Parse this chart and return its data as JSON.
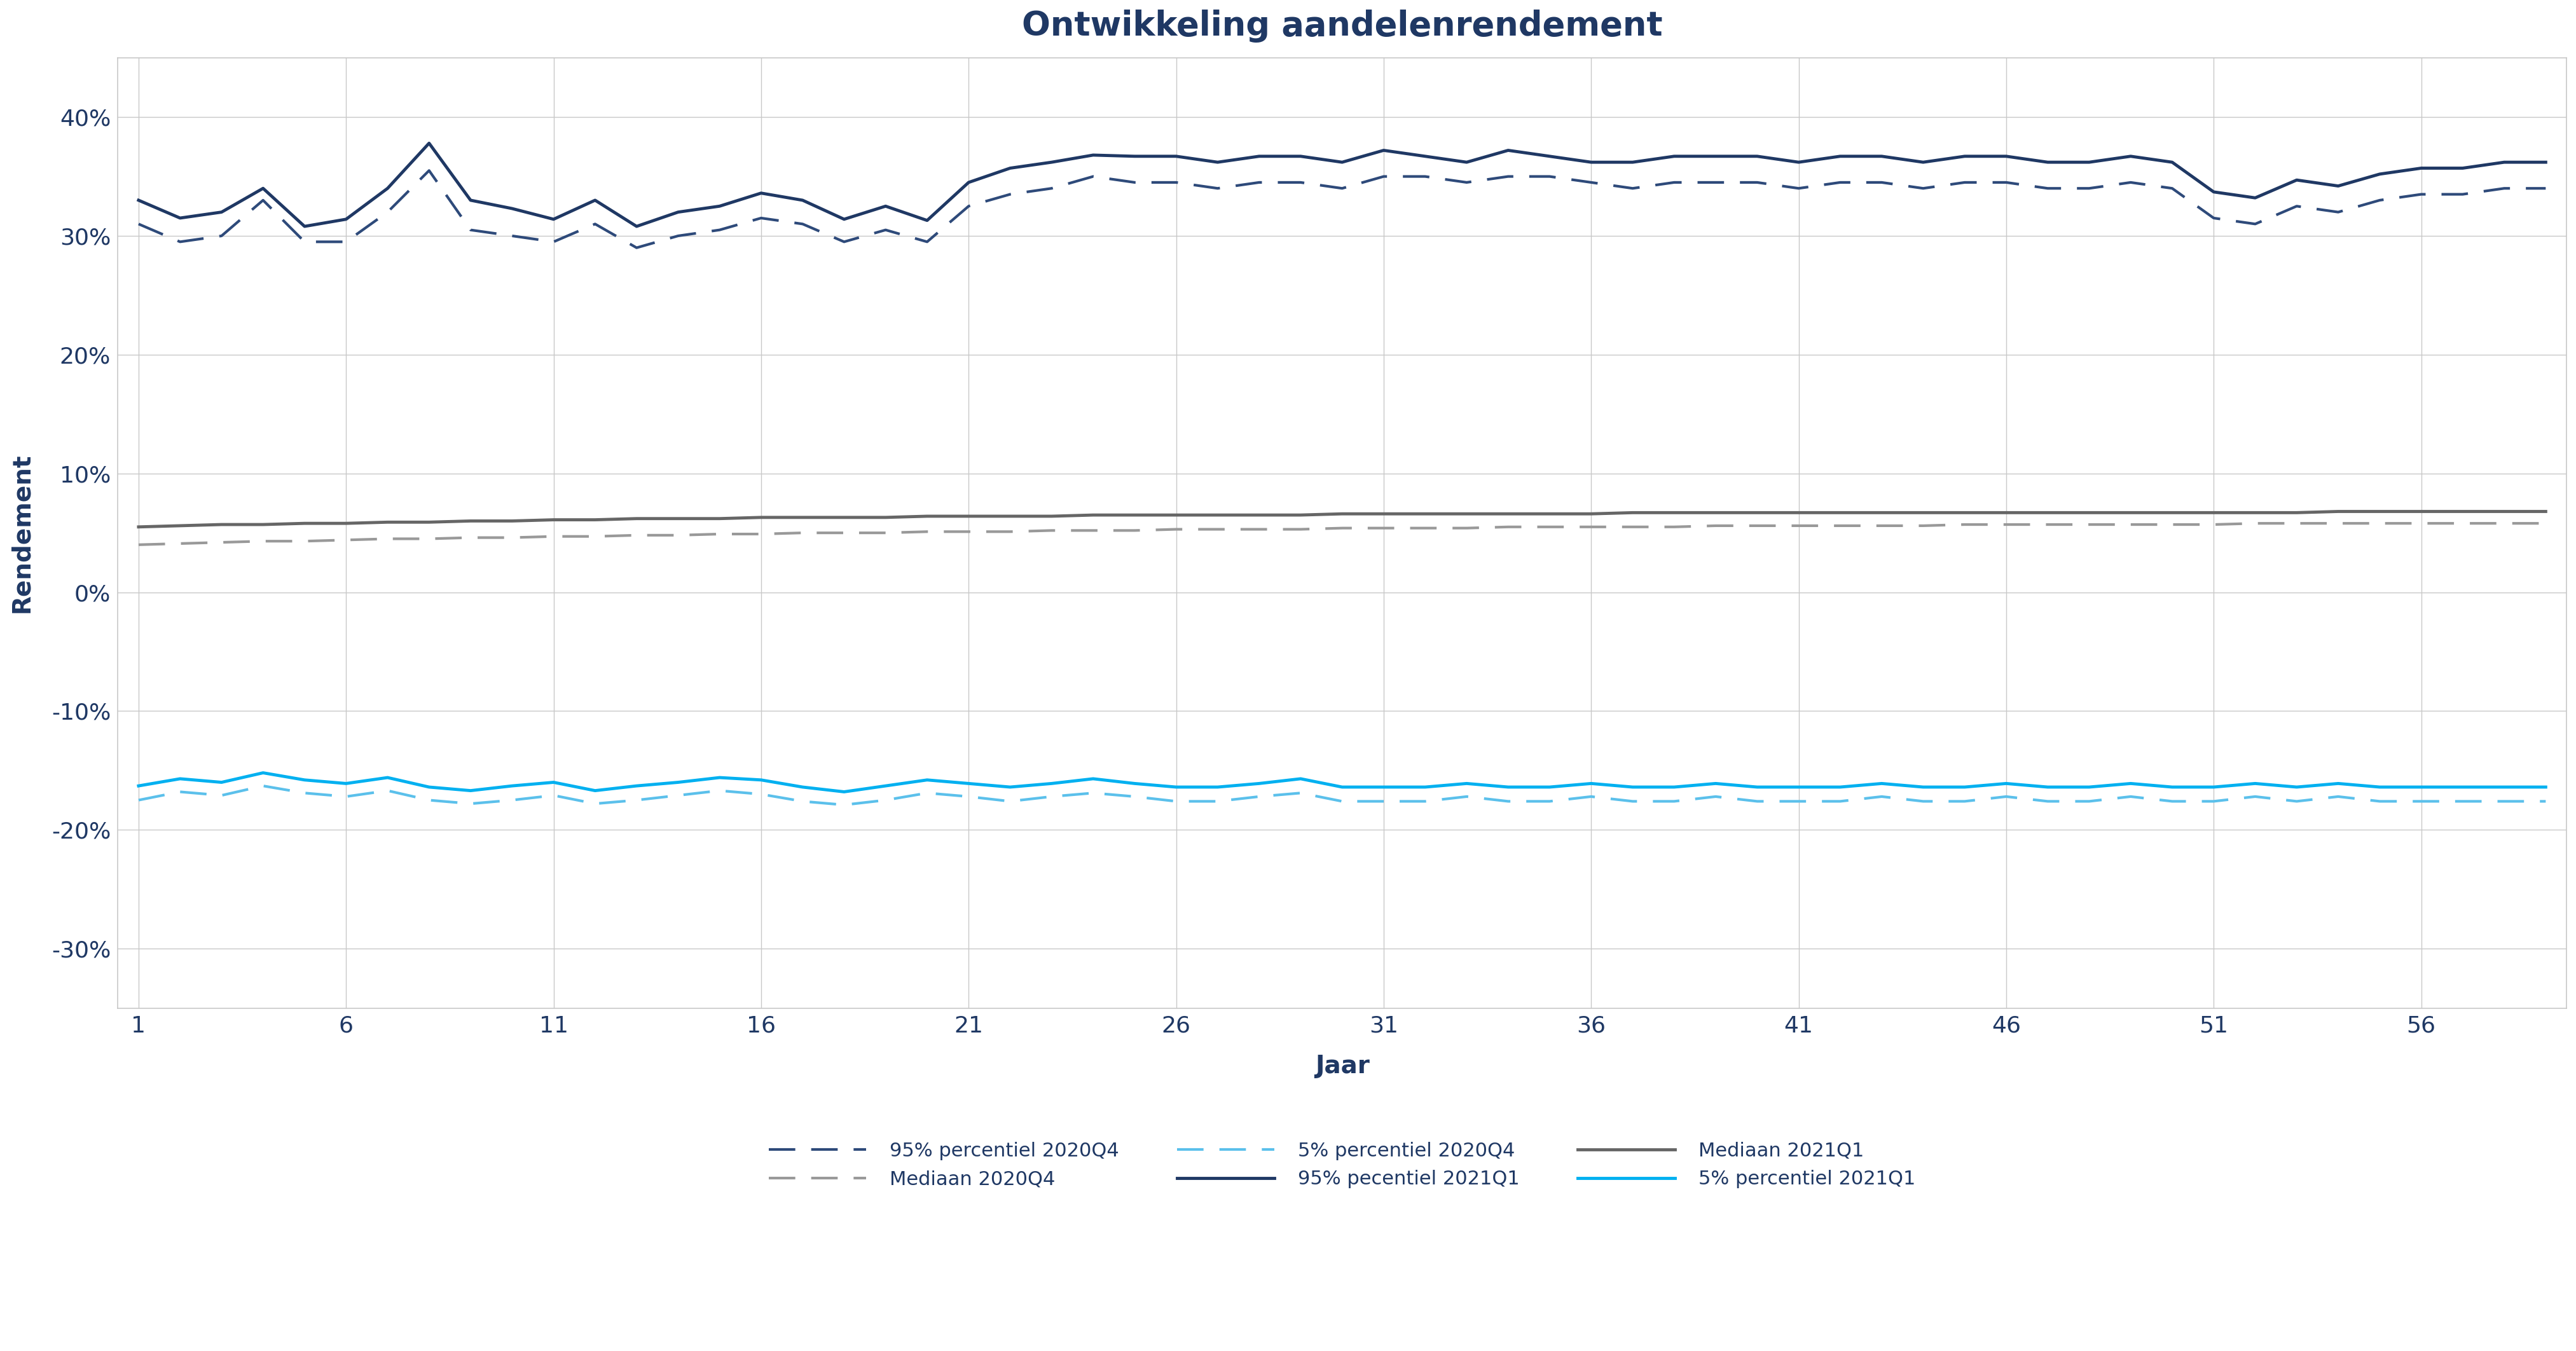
{
  "title": "Ontwikkeling aandelenrendement",
  "xlabel": "Jaar",
  "ylabel": "Rendement",
  "xlim": [
    1,
    59
  ],
  "ylim": [
    -0.35,
    0.45
  ],
  "yticks": [
    -0.3,
    -0.2,
    -0.1,
    0.0,
    0.1,
    0.2,
    0.3,
    0.4
  ],
  "xticks": [
    1,
    6,
    11,
    16,
    21,
    26,
    31,
    36,
    41,
    46,
    51,
    56
  ],
  "background_color": "#ffffff",
  "grid_color": "#c8c8c8",
  "title_color": "#1f3864",
  "axis_label_color": "#1f3864",
  "tick_color": "#1f3864",
  "series": {
    "p95_2020q4": {
      "label": "95% percentiel 2020Q4",
      "color": "#2e4a7a",
      "linestyle": "dashed",
      "linewidth": 3.0,
      "values": [
        0.31,
        0.295,
        0.3,
        0.33,
        0.295,
        0.295,
        0.32,
        0.355,
        0.305,
        0.3,
        0.295,
        0.31,
        0.29,
        0.3,
        0.305,
        0.315,
        0.31,
        0.295,
        0.305,
        0.295,
        0.325,
        0.335,
        0.34,
        0.35,
        0.345,
        0.345,
        0.34,
        0.345,
        0.345,
        0.34,
        0.35,
        0.35,
        0.345,
        0.35,
        0.35,
        0.345,
        0.34,
        0.345,
        0.345,
        0.345,
        0.34,
        0.345,
        0.345,
        0.34,
        0.345,
        0.345,
        0.34,
        0.34,
        0.345,
        0.34,
        0.315,
        0.31,
        0.325,
        0.32,
        0.33,
        0.335,
        0.335,
        0.34,
        0.34
      ]
    },
    "median_2020q4": {
      "label": "Mediaan 2020Q4",
      "color": "#999999",
      "linestyle": "dashed",
      "linewidth": 3.0,
      "values": [
        0.04,
        0.041,
        0.042,
        0.043,
        0.043,
        0.044,
        0.045,
        0.045,
        0.046,
        0.046,
        0.047,
        0.047,
        0.048,
        0.048,
        0.049,
        0.049,
        0.05,
        0.05,
        0.05,
        0.051,
        0.051,
        0.051,
        0.052,
        0.052,
        0.052,
        0.053,
        0.053,
        0.053,
        0.053,
        0.054,
        0.054,
        0.054,
        0.054,
        0.055,
        0.055,
        0.055,
        0.055,
        0.055,
        0.056,
        0.056,
        0.056,
        0.056,
        0.056,
        0.056,
        0.057,
        0.057,
        0.057,
        0.057,
        0.057,
        0.057,
        0.057,
        0.058,
        0.058,
        0.058,
        0.058,
        0.058,
        0.058,
        0.058,
        0.058
      ]
    },
    "p5_2020q4": {
      "label": "5% percentiel 2020Q4",
      "color": "#5bc0eb",
      "linestyle": "dashed",
      "linewidth": 3.0,
      "values": [
        -0.175,
        -0.168,
        -0.171,
        -0.163,
        -0.169,
        -0.172,
        -0.167,
        -0.175,
        -0.178,
        -0.175,
        -0.171,
        -0.178,
        -0.175,
        -0.171,
        -0.167,
        -0.17,
        -0.176,
        -0.179,
        -0.175,
        -0.169,
        -0.172,
        -0.176,
        -0.172,
        -0.169,
        -0.172,
        -0.176,
        -0.176,
        -0.172,
        -0.169,
        -0.176,
        -0.176,
        -0.176,
        -0.172,
        -0.176,
        -0.176,
        -0.172,
        -0.176,
        -0.176,
        -0.172,
        -0.176,
        -0.176,
        -0.176,
        -0.172,
        -0.176,
        -0.176,
        -0.172,
        -0.176,
        -0.176,
        -0.172,
        -0.176,
        -0.176,
        -0.172,
        -0.176,
        -0.172,
        -0.176,
        -0.176,
        -0.176,
        -0.176,
        -0.176
      ]
    },
    "p95_2021q1": {
      "label": "95% pecentiel 2021Q1",
      "color": "#1f3864",
      "linestyle": "solid",
      "linewidth": 3.5,
      "values": [
        0.33,
        0.315,
        0.32,
        0.34,
        0.308,
        0.314,
        0.34,
        0.378,
        0.33,
        0.323,
        0.314,
        0.33,
        0.308,
        0.32,
        0.325,
        0.336,
        0.33,
        0.314,
        0.325,
        0.313,
        0.345,
        0.357,
        0.362,
        0.368,
        0.367,
        0.367,
        0.362,
        0.367,
        0.367,
        0.362,
        0.372,
        0.367,
        0.362,
        0.372,
        0.367,
        0.362,
        0.362,
        0.367,
        0.367,
        0.367,
        0.362,
        0.367,
        0.367,
        0.362,
        0.367,
        0.367,
        0.362,
        0.362,
        0.367,
        0.362,
        0.337,
        0.332,
        0.347,
        0.342,
        0.352,
        0.357,
        0.357,
        0.362,
        0.362
      ]
    },
    "median_2021q1": {
      "label": "Mediaan 2021Q1",
      "color": "#666666",
      "linestyle": "solid",
      "linewidth": 3.5,
      "values": [
        0.055,
        0.056,
        0.057,
        0.057,
        0.058,
        0.058,
        0.059,
        0.059,
        0.06,
        0.06,
        0.061,
        0.061,
        0.062,
        0.062,
        0.062,
        0.063,
        0.063,
        0.063,
        0.063,
        0.064,
        0.064,
        0.064,
        0.064,
        0.065,
        0.065,
        0.065,
        0.065,
        0.065,
        0.065,
        0.066,
        0.066,
        0.066,
        0.066,
        0.066,
        0.066,
        0.066,
        0.067,
        0.067,
        0.067,
        0.067,
        0.067,
        0.067,
        0.067,
        0.067,
        0.067,
        0.067,
        0.067,
        0.067,
        0.067,
        0.067,
        0.067,
        0.067,
        0.067,
        0.068,
        0.068,
        0.068,
        0.068,
        0.068,
        0.068
      ]
    },
    "p5_2021q1": {
      "label": "5% percentiel 2021Q1",
      "color": "#00b0f0",
      "linestyle": "solid",
      "linewidth": 3.5,
      "values": [
        -0.163,
        -0.157,
        -0.16,
        -0.152,
        -0.158,
        -0.161,
        -0.156,
        -0.164,
        -0.167,
        -0.163,
        -0.16,
        -0.167,
        -0.163,
        -0.16,
        -0.156,
        -0.158,
        -0.164,
        -0.168,
        -0.163,
        -0.158,
        -0.161,
        -0.164,
        -0.161,
        -0.157,
        -0.161,
        -0.164,
        -0.164,
        -0.161,
        -0.157,
        -0.164,
        -0.164,
        -0.164,
        -0.161,
        -0.164,
        -0.164,
        -0.161,
        -0.164,
        -0.164,
        -0.161,
        -0.164,
        -0.164,
        -0.164,
        -0.161,
        -0.164,
        -0.164,
        -0.161,
        -0.164,
        -0.164,
        -0.161,
        -0.164,
        -0.164,
        -0.161,
        -0.164,
        -0.161,
        -0.164,
        -0.164,
        -0.164,
        -0.164,
        -0.164
      ]
    }
  },
  "legend_order": [
    "p95_2020q4",
    "median_2020q4",
    "p5_2020q4",
    "p95_2021q1",
    "median_2021q1",
    "p5_2021q1"
  ],
  "legend_ncol": 3,
  "legend_fontsize": 22,
  "title_fontsize": 38,
  "axis_label_fontsize": 28,
  "tick_fontsize": 26
}
